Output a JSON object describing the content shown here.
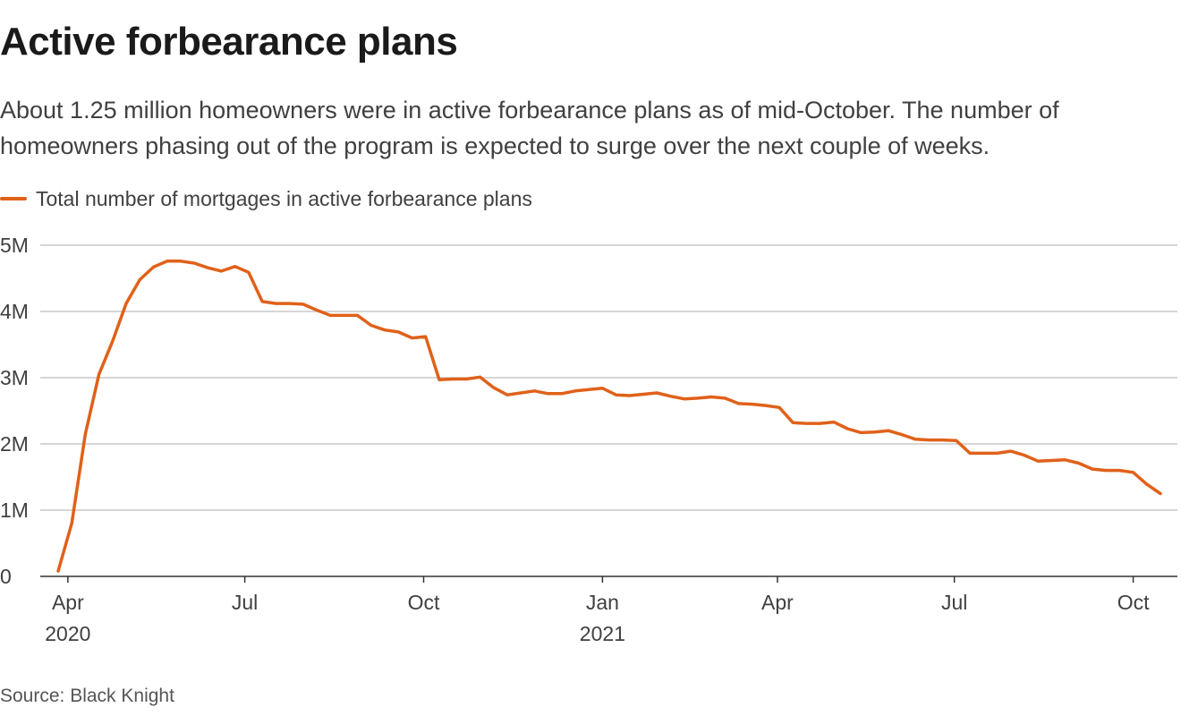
{
  "title": "Active forbearance plans",
  "subtitle": "About 1.25 million homeowners were in active forbearance plans as of mid-October. The number of homeowners phasing out of the program is expected to surge over the next couple of weeks.",
  "source": "Source: Black Knight",
  "colors": {
    "series": "#e0611a",
    "grid": "#c9c9c9",
    "axis": "#333333"
  },
  "chart_data": {
    "type": "line",
    "series": [
      {
        "name": "Total number of mortgages in active forbearance plans",
        "x": [
          "2020-03-27",
          "2020-04-03",
          "2020-04-10",
          "2020-04-17",
          "2020-04-24",
          "2020-05-01",
          "2020-05-08",
          "2020-05-15",
          "2020-05-22",
          "2020-05-29",
          "2020-06-05",
          "2020-06-12",
          "2020-06-19",
          "2020-06-26",
          "2020-07-03",
          "2020-07-10",
          "2020-07-17",
          "2020-07-24",
          "2020-07-31",
          "2020-08-07",
          "2020-08-14",
          "2020-08-21",
          "2020-08-28",
          "2020-09-04",
          "2020-09-11",
          "2020-09-18",
          "2020-09-25",
          "2020-10-02",
          "2020-10-09",
          "2020-10-16",
          "2020-10-23",
          "2020-10-30",
          "2020-11-06",
          "2020-11-13",
          "2020-11-20",
          "2020-11-27",
          "2020-12-04",
          "2020-12-11",
          "2020-12-18",
          "2020-12-25",
          "2021-01-01",
          "2021-01-08",
          "2021-01-15",
          "2021-01-22",
          "2021-01-29",
          "2021-02-05",
          "2021-02-12",
          "2021-02-19",
          "2021-02-26",
          "2021-03-05",
          "2021-03-12",
          "2021-03-19",
          "2021-03-26",
          "2021-04-02",
          "2021-04-09",
          "2021-04-16",
          "2021-04-23",
          "2021-04-30",
          "2021-05-07",
          "2021-05-14",
          "2021-05-21",
          "2021-05-28",
          "2021-06-04",
          "2021-06-11",
          "2021-06-18",
          "2021-06-25",
          "2021-07-02",
          "2021-07-09",
          "2021-07-16",
          "2021-07-23",
          "2021-07-30",
          "2021-08-06",
          "2021-08-13",
          "2021-08-20",
          "2021-08-27",
          "2021-09-03",
          "2021-09-10",
          "2021-09-17",
          "2021-09-24",
          "2021-10-01",
          "2021-10-08",
          "2021-10-15"
        ],
        "values": [
          0.08,
          0.8,
          2.15,
          3.05,
          3.55,
          4.12,
          4.48,
          4.67,
          4.76,
          4.76,
          4.73,
          4.66,
          4.61,
          4.68,
          4.59,
          4.15,
          4.12,
          4.12,
          4.11,
          4.02,
          3.94,
          3.94,
          3.94,
          3.79,
          3.72,
          3.69,
          3.6,
          3.62,
          2.97,
          2.98,
          2.98,
          3.01,
          2.85,
          2.74,
          2.77,
          2.8,
          2.76,
          2.76,
          2.8,
          2.82,
          2.84,
          2.74,
          2.73,
          2.75,
          2.77,
          2.72,
          2.68,
          2.69,
          2.71,
          2.69,
          2.61,
          2.6,
          2.58,
          2.55,
          2.32,
          2.31,
          2.31,
          2.33,
          2.23,
          2.17,
          2.18,
          2.2,
          2.14,
          2.07,
          2.06,
          2.06,
          2.05,
          1.86,
          1.86,
          1.86,
          1.89,
          1.83,
          1.74,
          1.75,
          1.76,
          1.71,
          1.62,
          1.6,
          1.6,
          1.57,
          1.39,
          1.25
        ]
      }
    ],
    "yunit": "millions",
    "ylim": [
      0,
      5
    ],
    "yticks": [
      0,
      1,
      2,
      3,
      4,
      5
    ],
    "ytick_labels": [
      "0",
      "1M",
      "2M",
      "3M",
      "4M",
      "5M"
    ],
    "xlim": [
      "2020-03-27",
      "2021-10-15"
    ],
    "xticks": [
      {
        "date": "2020-04-01",
        "label": "Apr",
        "year": "2020"
      },
      {
        "date": "2020-07-01",
        "label": "Jul",
        "year": ""
      },
      {
        "date": "2020-10-01",
        "label": "Oct",
        "year": ""
      },
      {
        "date": "2021-01-01",
        "label": "Jan",
        "year": "2021"
      },
      {
        "date": "2021-04-01",
        "label": "Apr",
        "year": ""
      },
      {
        "date": "2021-07-01",
        "label": "Jul",
        "year": ""
      },
      {
        "date": "2021-10-01",
        "label": "Oct",
        "year": ""
      }
    ],
    "grid": true,
    "legend": "top-left"
  }
}
